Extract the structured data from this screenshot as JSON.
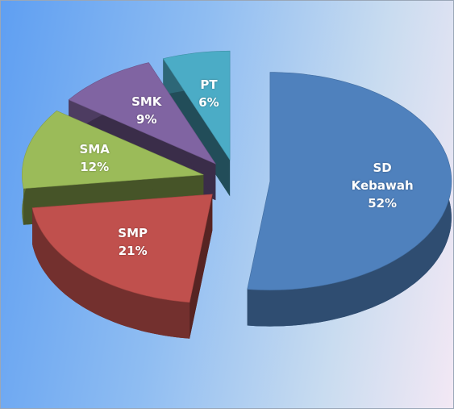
{
  "chart_data": {
    "type": "pie",
    "categories": [
      "SD Kebawah",
      "SMP",
      "SMA",
      "SMK",
      "PT"
    ],
    "values": [
      52,
      21,
      12,
      9,
      6
    ],
    "value_labels": [
      "52%",
      "21%",
      "12%",
      "9%",
      "6%"
    ],
    "colors": [
      "#4f81bd",
      "#c0504d",
      "#9bbb59",
      "#8064a2",
      "#4bacc6"
    ]
  }
}
